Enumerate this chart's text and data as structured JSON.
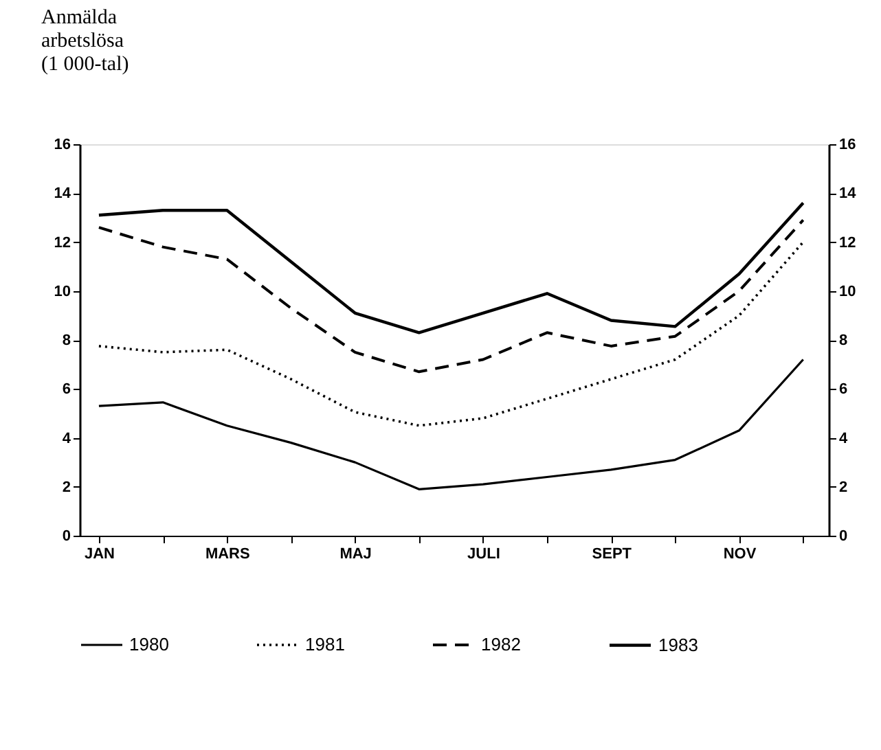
{
  "chart_data": {
    "type": "line",
    "ylabel": "Anmälda arbetslösa (1 000-tal)",
    "categories": [
      "JAN",
      null,
      "MARS",
      null,
      "MAJ",
      null,
      "JULI",
      null,
      "SEPT",
      null,
      "NOV",
      null
    ],
    "series": [
      {
        "name": "1980",
        "color": "#000000",
        "line_style": "solid",
        "values": [
          5.3,
          5.45,
          4.5,
          3.8,
          3.0,
          1.9,
          2.1,
          2.4,
          2.7,
          3.1,
          4.3,
          7.2
        ]
      },
      {
        "name": "1981",
        "color": "#000000",
        "line_style": "dotted",
        "values": [
          7.75,
          7.5,
          7.6,
          6.4,
          5.05,
          4.5,
          4.8,
          5.6,
          6.4,
          7.2,
          9.0,
          12.0
        ]
      },
      {
        "name": "1982",
        "color": "#000000",
        "line_style": "dashed",
        "values": [
          12.6,
          11.8,
          11.3,
          9.3,
          7.5,
          6.7,
          7.2,
          8.3,
          7.75,
          8.15,
          10.0,
          12.9
        ]
      },
      {
        "name": "1983",
        "color": "#000000",
        "line_style": "solid",
        "values": [
          13.1,
          13.3,
          13.3,
          11.2,
          9.1,
          8.3,
          9.1,
          9.9,
          8.8,
          8.55,
          10.7,
          13.6
        ]
      }
    ],
    "ylim": [
      0,
      16
    ],
    "yticks": [
      0,
      2,
      4,
      6,
      8,
      10,
      12,
      14,
      16
    ],
    "y2lim": [
      0,
      16
    ],
    "y2ticks": [
      0,
      2,
      4,
      6,
      8,
      10,
      12,
      14,
      16
    ],
    "grid": false,
    "legend": "bottom",
    "marker": "none"
  }
}
